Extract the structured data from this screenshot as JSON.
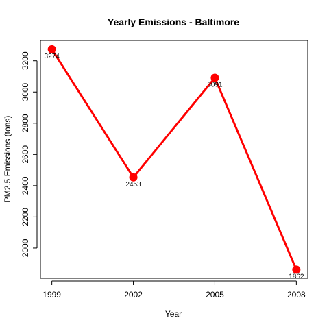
{
  "chart_data": {
    "type": "line",
    "title": "Yearly Emissions - Baltimore",
    "xlabel": "Year",
    "ylabel": "PM2.5 Emissions (tons)",
    "x": [
      1999,
      2002,
      2005,
      2008
    ],
    "x_tick_labels": [
      "1999",
      "2002",
      "2005",
      "2008"
    ],
    "series": [
      {
        "values": [
          3274,
          2453,
          3091,
          1862
        ],
        "labels": [
          "3274",
          "2453",
          "3091",
          "1862"
        ],
        "color": "#ff0000"
      }
    ],
    "y_ticks": [
      2000,
      2200,
      2400,
      2600,
      2800,
      3000,
      3200
    ],
    "y_tick_labels": [
      "2000",
      "2200",
      "2400",
      "2600",
      "2800",
      "3000",
      "3200"
    ],
    "xlim": [
      1998.58,
      2008.42
    ],
    "ylim": [
      1806.5,
      3330.5
    ],
    "grid": false,
    "legend": "none"
  }
}
